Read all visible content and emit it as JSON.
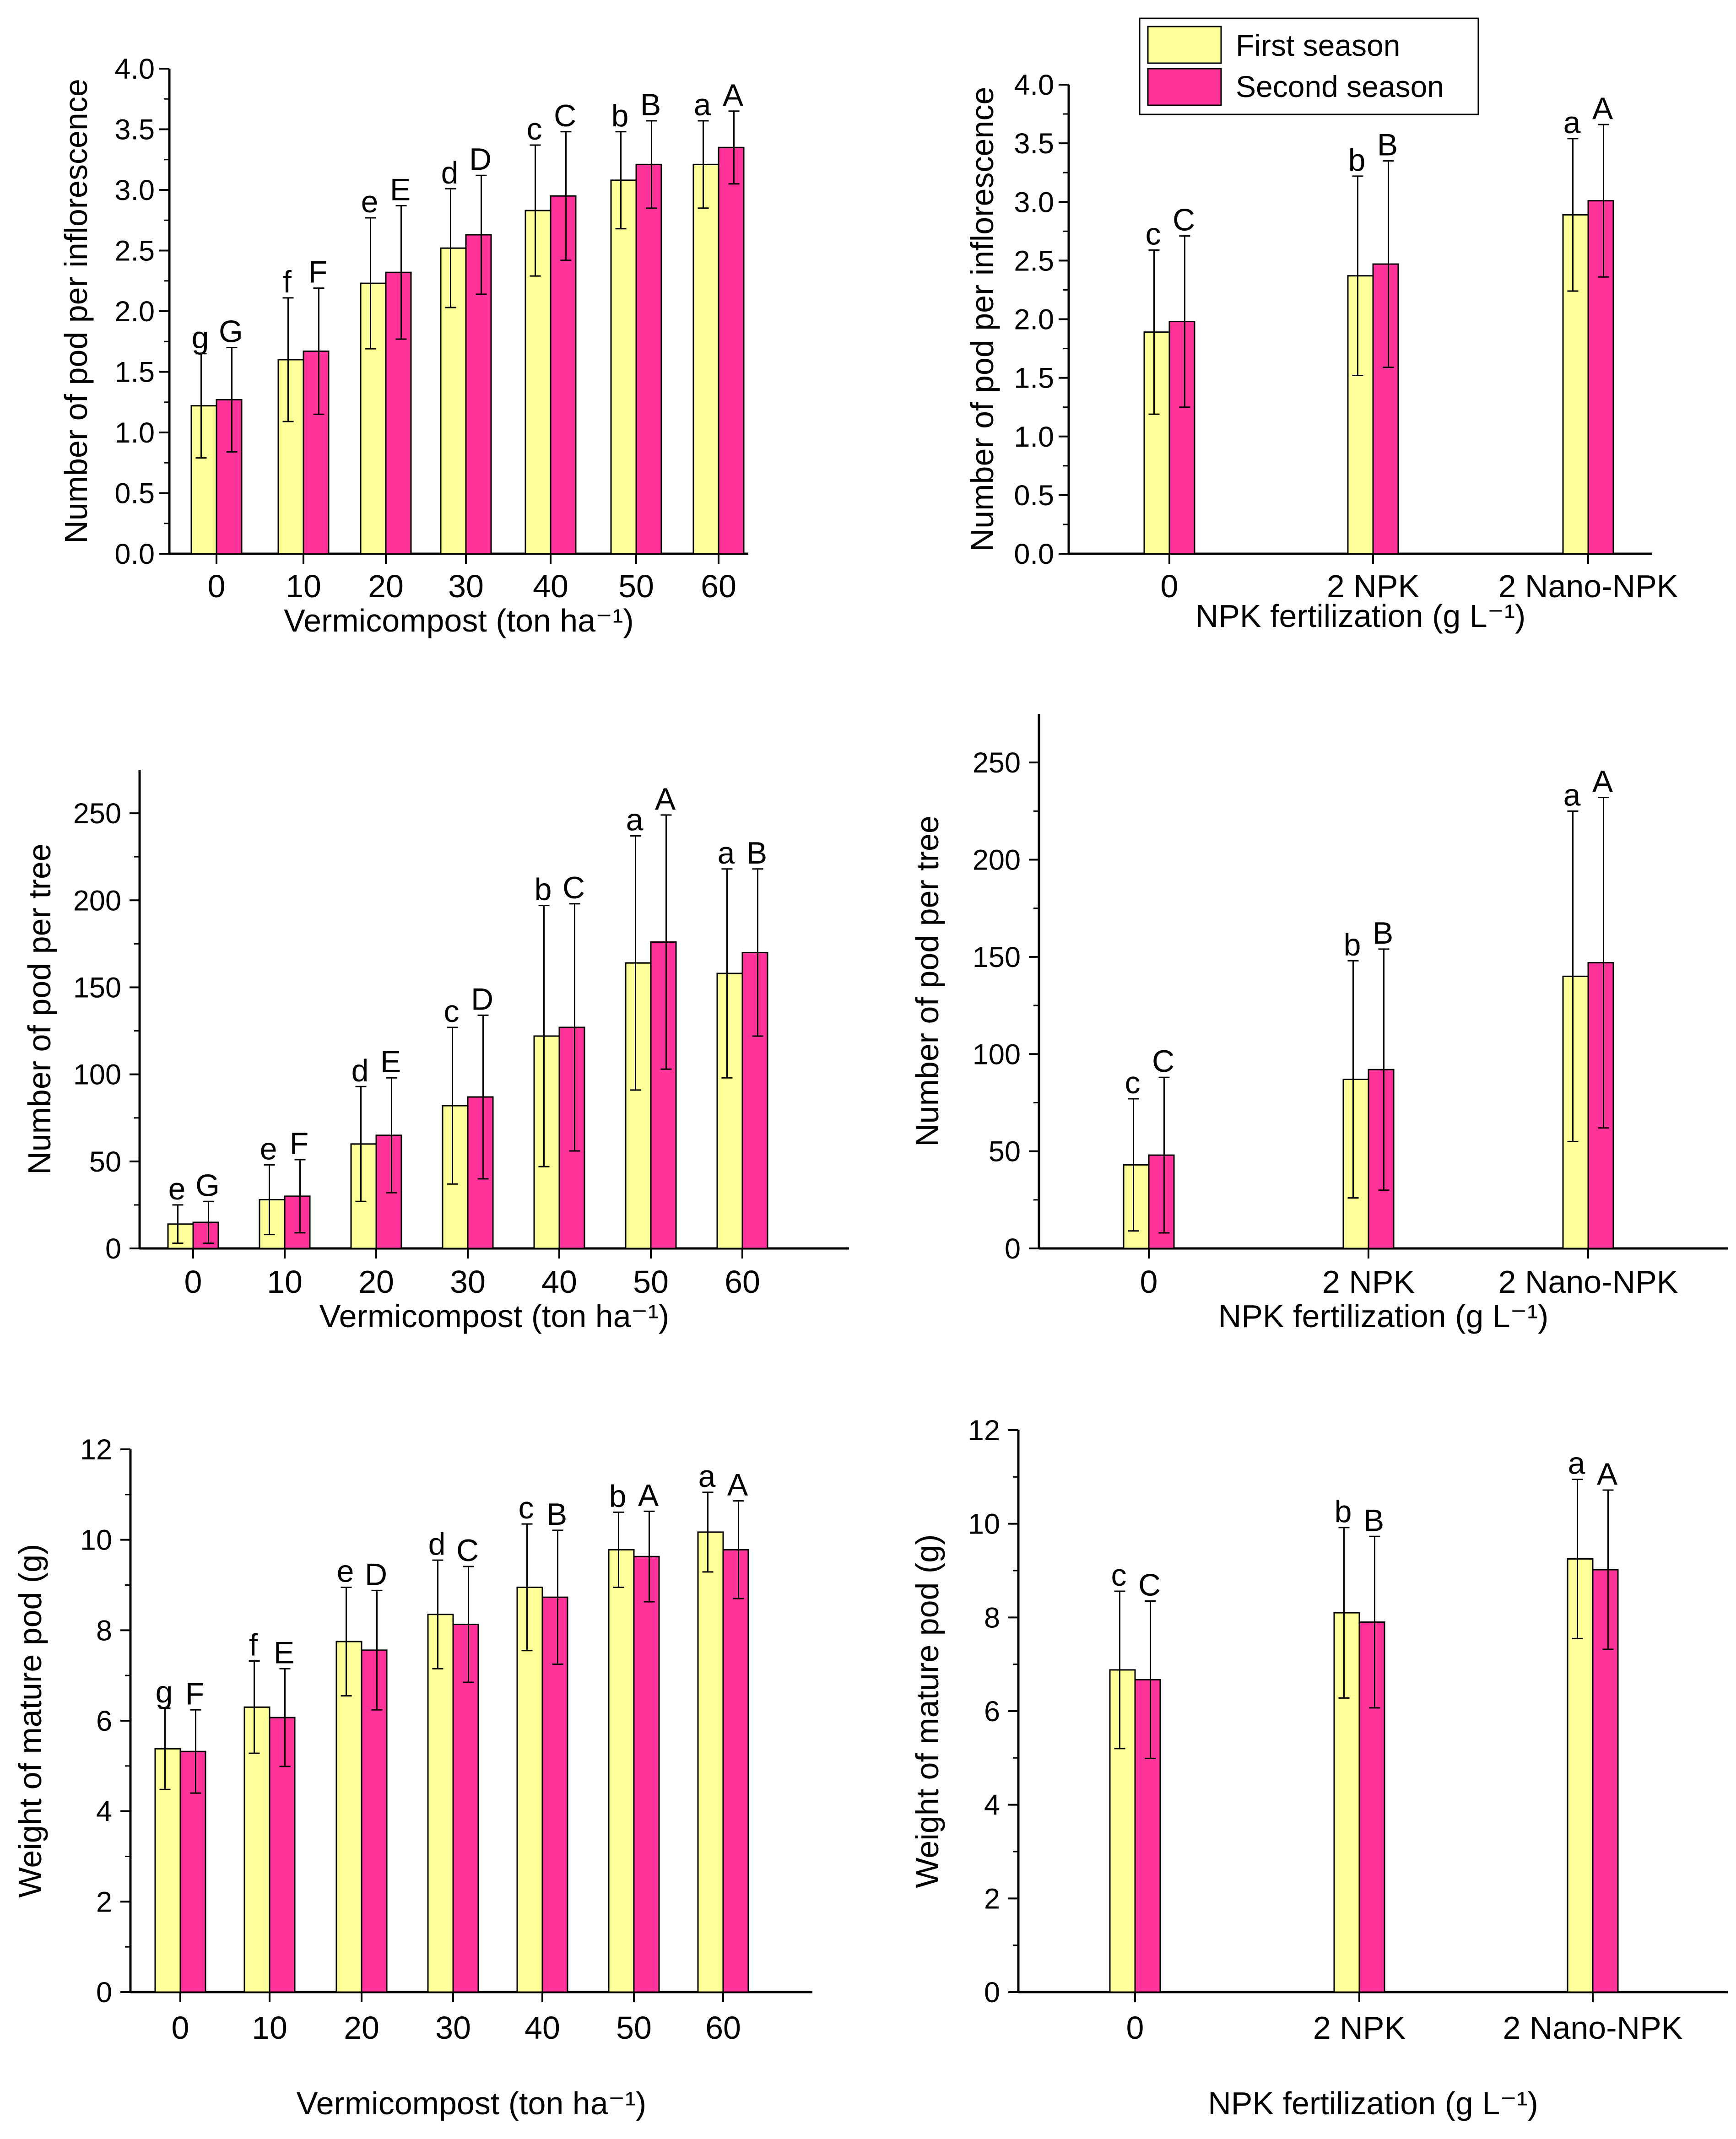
{
  "colors": {
    "first": "#ffff99",
    "second": "#ff3399",
    "stroke": "#000000"
  },
  "legend": {
    "first_label": "First season",
    "second_label": "Second season"
  },
  "chart_data": [
    {
      "id": "p1",
      "type": "bar",
      "ylabel": "Number of pod per inflorescence",
      "xlabel": "Vermicompost (ton ha⁻¹)",
      "categories": [
        "0",
        "10",
        "20",
        "30",
        "40",
        "50",
        "60"
      ],
      "ylim": [
        0,
        4.0
      ],
      "yticks": [
        "0.0",
        "0.5",
        "1.0",
        "1.5",
        "2.0",
        "2.5",
        "3.0",
        "3.5",
        "4.0"
      ],
      "series": [
        {
          "name": "First season",
          "values": [
            1.22,
            1.6,
            2.23,
            2.52,
            2.83,
            3.08,
            3.21
          ],
          "errors": [
            0.43,
            0.51,
            0.54,
            0.49,
            0.54,
            0.4,
            0.36
          ],
          "letters": [
            "g",
            "f",
            "e",
            "d",
            "c",
            "b",
            "a"
          ]
        },
        {
          "name": "Second season",
          "values": [
            1.27,
            1.67,
            2.32,
            2.63,
            2.95,
            3.21,
            3.35
          ],
          "errors": [
            0.43,
            0.52,
            0.55,
            0.49,
            0.53,
            0.36,
            0.3
          ],
          "letters": [
            "G",
            "F",
            "E",
            "D",
            "C",
            "B",
            "A"
          ]
        }
      ]
    },
    {
      "id": "p2",
      "type": "bar",
      "ylabel": "Number of pod per inflorescence",
      "xlabel": "NPK fertilization (g L⁻¹)",
      "categories": [
        "0",
        "2 NPK",
        "2 Nano-NPK"
      ],
      "ylim": [
        0,
        4.0
      ],
      "yticks": [
        "0.0",
        "0.5",
        "1.0",
        "1.5",
        "2.0",
        "2.5",
        "3.0",
        "3.5",
        "4.0"
      ],
      "series": [
        {
          "name": "First season",
          "values": [
            1.89,
            2.37,
            2.89
          ],
          "errors": [
            0.7,
            0.85,
            0.65
          ],
          "letters": [
            "c",
            "b",
            "a"
          ]
        },
        {
          "name": "Second season",
          "values": [
            1.98,
            2.47,
            3.01
          ],
          "errors": [
            0.73,
            0.88,
            0.65
          ],
          "letters": [
            "C",
            "B",
            "A"
          ]
        }
      ]
    },
    {
      "id": "p3",
      "type": "bar",
      "ylabel": "Number of pod per tree",
      "xlabel": "Vermicompost (ton ha⁻¹)",
      "categories": [
        "0",
        "10",
        "20",
        "30",
        "40",
        "50",
        "60"
      ],
      "ylim": [
        0,
        275
      ],
      "yticks": [
        "0",
        "50",
        "100",
        "150",
        "200",
        "250"
      ],
      "series": [
        {
          "name": "First season",
          "values": [
            14,
            28,
            60,
            82,
            122,
            164,
            158
          ],
          "errors": [
            11,
            20,
            33,
            45,
            75,
            73,
            60
          ],
          "letters": [
            "e",
            "e",
            "d",
            "c",
            "b",
            "a",
            "a"
          ]
        },
        {
          "name": "Second season",
          "values": [
            15,
            30,
            65,
            87,
            127,
            176,
            170
          ],
          "errors": [
            12,
            21,
            33,
            47,
            71,
            73,
            48
          ],
          "letters": [
            "G",
            "F",
            "E",
            "D",
            "C",
            "A",
            "B"
          ]
        }
      ]
    },
    {
      "id": "p4",
      "type": "bar",
      "ylabel": "Number of pod per tree",
      "xlabel": "NPK fertilization (g L⁻¹)",
      "categories": [
        "0",
        "2 NPK",
        "2 Nano-NPK"
      ],
      "ylim": [
        0,
        275
      ],
      "yticks": [
        "0",
        "50",
        "100",
        "150",
        "200",
        "250"
      ],
      "series": [
        {
          "name": "First season",
          "values": [
            43,
            87,
            140
          ],
          "errors": [
            34,
            61,
            85
          ],
          "letters": [
            "c",
            "b",
            "a"
          ]
        },
        {
          "name": "Second season",
          "values": [
            48,
            92,
            147
          ],
          "errors": [
            40,
            62,
            85
          ],
          "letters": [
            "C",
            "B",
            "A"
          ]
        }
      ]
    },
    {
      "id": "p5",
      "type": "bar",
      "ylabel": "Weight of mature pod (g)",
      "xlabel": "Vermicompost (ton ha⁻¹)",
      "categories": [
        "0",
        "10",
        "20",
        "30",
        "40",
        "50",
        "60"
      ],
      "ylim": [
        0,
        12
      ],
      "yticks": [
        "0",
        "2",
        "4",
        "6",
        "8",
        "10",
        "12"
      ],
      "series": [
        {
          "name": "First season",
          "values": [
            5.38,
            6.3,
            7.75,
            8.35,
            8.95,
            9.78,
            10.17
          ],
          "errors": [
            0.9,
            1.02,
            1.2,
            1.2,
            1.4,
            0.83,
            0.88
          ],
          "letters": [
            "g",
            "f",
            "e",
            "d",
            "c",
            "b",
            "a"
          ]
        },
        {
          "name": "Second season",
          "values": [
            5.32,
            6.07,
            7.56,
            8.13,
            8.73,
            9.63,
            9.78
          ],
          "errors": [
            0.92,
            1.08,
            1.32,
            1.28,
            1.48,
            1.0,
            1.08
          ],
          "letters": [
            "F",
            "E",
            "D",
            "C",
            "B",
            "A",
            "A"
          ]
        }
      ]
    },
    {
      "id": "p6",
      "type": "bar",
      "ylabel": "Weight of mature pod (g)",
      "xlabel": "NPK fertilization (g L⁻¹)",
      "categories": [
        "0",
        "2 NPK",
        "2 Nano-NPK"
      ],
      "ylim": [
        0,
        12
      ],
      "yticks": [
        "0",
        "2",
        "4",
        "6",
        "8",
        "10",
        "12"
      ],
      "series": [
        {
          "name": "First season",
          "values": [
            6.88,
            8.1,
            9.25
          ],
          "errors": [
            1.68,
            1.82,
            1.7
          ],
          "letters": [
            "c",
            "b",
            "a"
          ]
        },
        {
          "name": "Second season",
          "values": [
            6.67,
            7.9,
            9.02
          ],
          "errors": [
            1.68,
            1.83,
            1.7
          ],
          "letters": [
            "C",
            "B",
            "A"
          ]
        }
      ]
    }
  ]
}
